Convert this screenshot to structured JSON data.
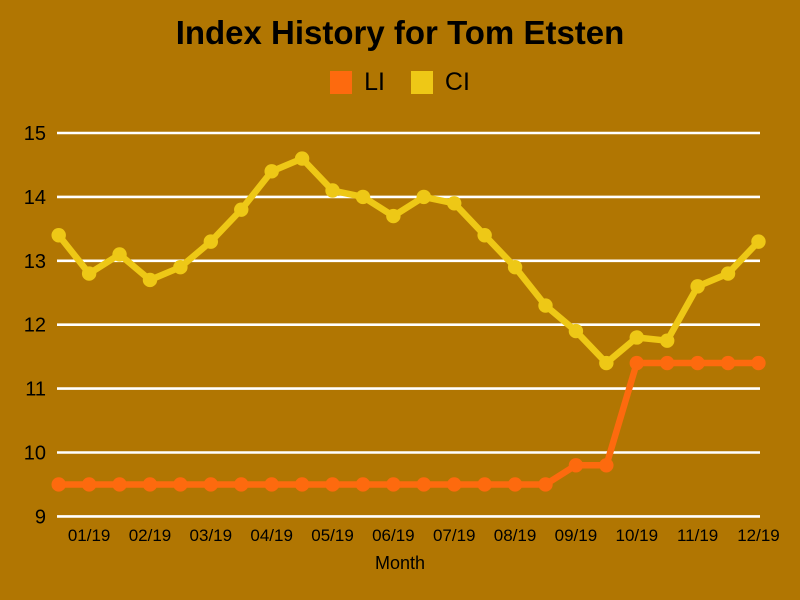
{
  "chart_data": {
    "type": "line",
    "title": "Index History for Tom Etsten",
    "xlabel": "Month",
    "ylabel": "",
    "categories": [
      "01/19",
      "02/19",
      "03/19",
      "04/19",
      "05/19",
      "06/19",
      "07/19",
      "08/19",
      "09/19",
      "10/19",
      "11/19",
      "12/19"
    ],
    "points_per_month": 2,
    "y_ticks": [
      9,
      10,
      11,
      12,
      13,
      14,
      15
    ],
    "ylim": [
      9,
      15
    ],
    "grid": "horizontal-white-lines",
    "legend_position": "top-center",
    "background_color": "#B17602",
    "grid_color": "#FFFFFF",
    "text_color": "#000000",
    "series": [
      {
        "name": "LI",
        "color": "#FD6A0E",
        "values": [
          9.5,
          9.5,
          9.5,
          9.5,
          9.5,
          9.5,
          9.5,
          9.5,
          9.5,
          9.5,
          9.5,
          9.5,
          9.5,
          9.5,
          9.5,
          9.5,
          9.5,
          9.8,
          9.8,
          11.4,
          11.4,
          11.4,
          11.4,
          11.4
        ]
      },
      {
        "name": "CI",
        "color": "#EEC816",
        "values": [
          13.4,
          12.8,
          13.1,
          12.7,
          12.9,
          13.3,
          13.8,
          14.4,
          14.6,
          14.1,
          14.0,
          13.7,
          14.0,
          13.9,
          13.4,
          12.9,
          12.3,
          11.9,
          11.4,
          11.8,
          11.75,
          12.6,
          12.8,
          13.3
        ]
      }
    ]
  }
}
